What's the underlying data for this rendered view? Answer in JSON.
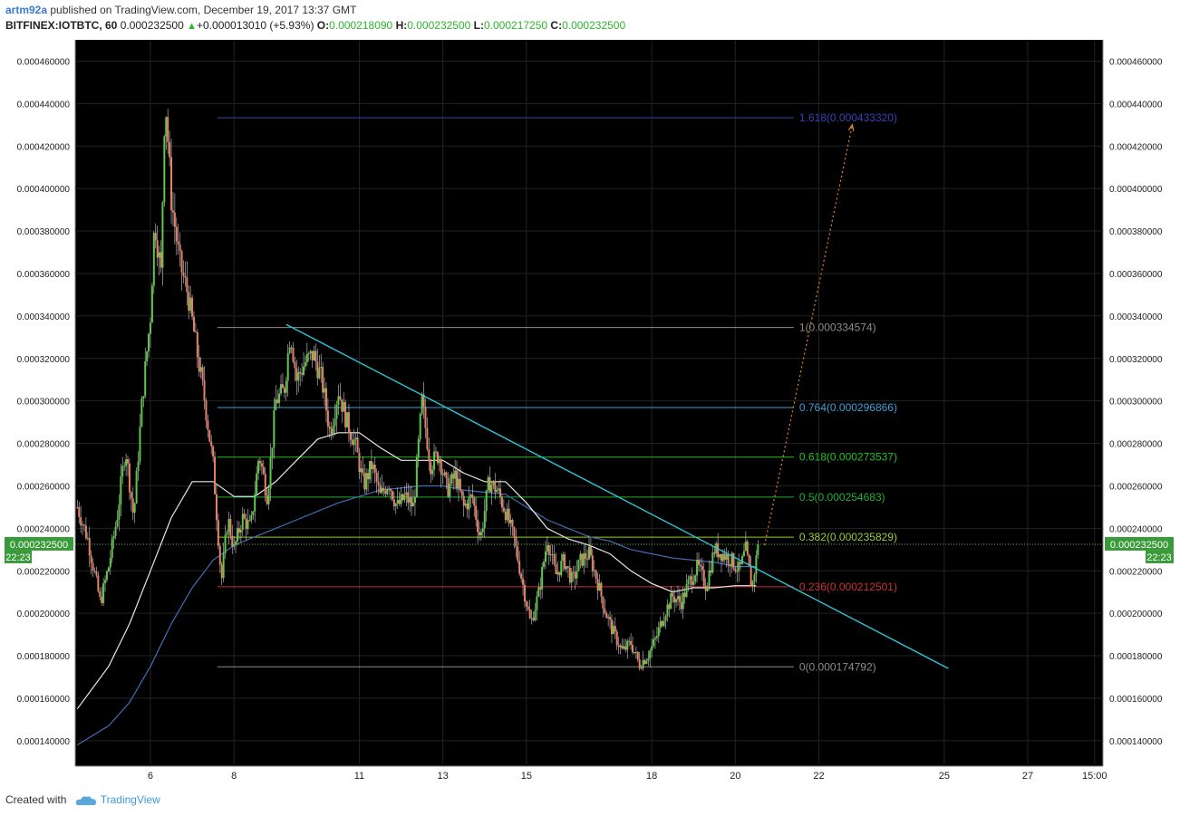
{
  "header": {
    "user": "artm92a",
    "published": "published on TradingView.com, December 19, 2017 13:37 GMT",
    "symbol": "BITFINEX:IOTBTC, 60",
    "price": "0.000232500",
    "change": "+0.000013010 (+5.93%)",
    "o_label": "O:",
    "o": "0.000218090",
    "h_label": "H:",
    "h": "0.000232500",
    "l_label": "L:",
    "l": "0.000217250",
    "c_label": "C:",
    "c": "0.000232500"
  },
  "footer": {
    "created": "Created with",
    "brand": "TradingView"
  },
  "chart_data": {
    "type": "candlestick",
    "title": "",
    "ylim": [
      0.000128,
      0.00047
    ],
    "y_ticks": [
      "0.000140000",
      "0.000160000",
      "0.000180000",
      "0.000200000",
      "0.000220000",
      "0.000240000",
      "0.000260000",
      "0.000280000",
      "0.000300000",
      "0.000320000",
      "0.000340000",
      "0.000360000",
      "0.000380000",
      "0.000400000",
      "0.000420000",
      "0.000440000",
      "0.000460000"
    ],
    "x_ticks": [
      {
        "label": "6",
        "day": 6
      },
      {
        "label": "8",
        "day": 8
      },
      {
        "label": "11",
        "day": 11
      },
      {
        "label": "13",
        "day": 13
      },
      {
        "label": "15",
        "day": 15
      },
      {
        "label": "18",
        "day": 18
      },
      {
        "label": "20",
        "day": 20
      },
      {
        "label": "22",
        "day": 22
      },
      {
        "label": "25",
        "day": 25
      },
      {
        "label": "27",
        "day": 27
      },
      {
        "label": "15:00",
        "day": 28.6
      }
    ],
    "xlim_day": [
      4.2,
      28.8
    ],
    "current_price": {
      "value": 0.0002325,
      "label": "0.000232500",
      "countdown": "22:23"
    },
    "path": [
      {
        "d": 4.25,
        "v": 0.00025
      },
      {
        "d": 4.5,
        "v": 0.000235
      },
      {
        "d": 4.8,
        "v": 0.000205
      },
      {
        "d": 5.0,
        "v": 0.000222
      },
      {
        "d": 5.2,
        "v": 0.000245
      },
      {
        "d": 5.4,
        "v": 0.000278
      },
      {
        "d": 5.6,
        "v": 0.000245
      },
      {
        "d": 5.8,
        "v": 0.0003
      },
      {
        "d": 6.0,
        "v": 0.00034
      },
      {
        "d": 6.1,
        "v": 0.000385
      },
      {
        "d": 6.25,
        "v": 0.00036
      },
      {
        "d": 6.35,
        "v": 0.000445
      },
      {
        "d": 6.5,
        "v": 0.000395
      },
      {
        "d": 6.7,
        "v": 0.000365
      },
      {
        "d": 6.9,
        "v": 0.00035
      },
      {
        "d": 7.1,
        "v": 0.000325
      },
      {
        "d": 7.3,
        "v": 0.0003
      },
      {
        "d": 7.5,
        "v": 0.00027
      },
      {
        "d": 7.7,
        "v": 0.000215
      },
      {
        "d": 7.85,
        "v": 0.000245
      },
      {
        "d": 8.0,
        "v": 0.00023
      },
      {
        "d": 8.2,
        "v": 0.000245
      },
      {
        "d": 8.4,
        "v": 0.00024
      },
      {
        "d": 8.6,
        "v": 0.000275
      },
      {
        "d": 8.8,
        "v": 0.000255
      },
      {
        "d": 9.0,
        "v": 0.0003
      },
      {
        "d": 9.2,
        "v": 0.000305
      },
      {
        "d": 9.35,
        "v": 0.000333
      },
      {
        "d": 9.5,
        "v": 0.00031
      },
      {
        "d": 9.7,
        "v": 0.000318
      },
      {
        "d": 9.9,
        "v": 0.000322
      },
      {
        "d": 10.1,
        "v": 0.00031
      },
      {
        "d": 10.3,
        "v": 0.000285
      },
      {
        "d": 10.5,
        "v": 0.000305
      },
      {
        "d": 10.7,
        "v": 0.00029
      },
      {
        "d": 10.9,
        "v": 0.00028
      },
      {
        "d": 11.1,
        "v": 0.00026
      },
      {
        "d": 11.3,
        "v": 0.00027
      },
      {
        "d": 11.5,
        "v": 0.000255
      },
      {
        "d": 11.7,
        "v": 0.000262
      },
      {
        "d": 11.9,
        "v": 0.00025
      },
      {
        "d": 12.1,
        "v": 0.000255
      },
      {
        "d": 12.3,
        "v": 0.00025
      },
      {
        "d": 12.5,
        "v": 0.0003
      },
      {
        "d": 12.7,
        "v": 0.00027
      },
      {
        "d": 12.9,
        "v": 0.000275
      },
      {
        "d": 13.1,
        "v": 0.000258
      },
      {
        "d": 13.3,
        "v": 0.000265
      },
      {
        "d": 13.5,
        "v": 0.00025
      },
      {
        "d": 13.7,
        "v": 0.000255
      },
      {
        "d": 13.9,
        "v": 0.000235
      },
      {
        "d": 14.1,
        "v": 0.000262
      },
      {
        "d": 14.3,
        "v": 0.000258
      },
      {
        "d": 14.5,
        "v": 0.000248
      },
      {
        "d": 14.7,
        "v": 0.000235
      },
      {
        "d": 14.9,
        "v": 0.000215
      },
      {
        "d": 15.1,
        "v": 0.000195
      },
      {
        "d": 15.3,
        "v": 0.00021
      },
      {
        "d": 15.5,
        "v": 0.000235
      },
      {
        "d": 15.7,
        "v": 0.000218
      },
      {
        "d": 15.9,
        "v": 0.000225
      },
      {
        "d": 16.1,
        "v": 0.000215
      },
      {
        "d": 16.3,
        "v": 0.000225
      },
      {
        "d": 16.5,
        "v": 0.000228
      },
      {
        "d": 16.7,
        "v": 0.000215
      },
      {
        "d": 16.9,
        "v": 0.0002
      },
      {
        "d": 17.1,
        "v": 0.00019
      },
      {
        "d": 17.3,
        "v": 0.000182
      },
      {
        "d": 17.5,
        "v": 0.000186
      },
      {
        "d": 17.7,
        "v": 0.000176
      },
      {
        "d": 17.9,
        "v": 0.00018
      },
      {
        "d": 18.1,
        "v": 0.000188
      },
      {
        "d": 18.3,
        "v": 0.0002
      },
      {
        "d": 18.5,
        "v": 0.000208
      },
      {
        "d": 18.7,
        "v": 0.000205
      },
      {
        "d": 18.9,
        "v": 0.000215
      },
      {
        "d": 19.1,
        "v": 0.000222
      },
      {
        "d": 19.3,
        "v": 0.000213
      },
      {
        "d": 19.5,
        "v": 0.00023
      },
      {
        "d": 19.7,
        "v": 0.000228
      },
      {
        "d": 19.9,
        "v": 0.000225
      },
      {
        "d": 20.1,
        "v": 0.00022
      },
      {
        "d": 20.25,
        "v": 0.00023
      },
      {
        "d": 20.4,
        "v": 0.000212
      },
      {
        "d": 20.55,
        "v": 0.0002325
      }
    ],
    "ma_fast": [
      [
        4.25,
        0.000155
      ],
      [
        5.0,
        0.000175
      ],
      [
        5.5,
        0.000195
      ],
      [
        6.0,
        0.00022
      ],
      [
        6.5,
        0.000245
      ],
      [
        7.0,
        0.000262
      ],
      [
        7.5,
        0.000262
      ],
      [
        8.0,
        0.000255
      ],
      [
        8.5,
        0.000255
      ],
      [
        9.0,
        0.000262
      ],
      [
        9.5,
        0.000272
      ],
      [
        10.0,
        0.000282
      ],
      [
        10.5,
        0.000285
      ],
      [
        11.0,
        0.000285
      ],
      [
        11.5,
        0.000278
      ],
      [
        12.0,
        0.000272
      ],
      [
        12.5,
        0.000272
      ],
      [
        13.0,
        0.000272
      ],
      [
        13.5,
        0.000266
      ],
      [
        14.0,
        0.000262
      ],
      [
        14.5,
        0.000262
      ],
      [
        15.0,
        0.000252
      ],
      [
        15.5,
        0.00024
      ],
      [
        16.0,
        0.000235
      ],
      [
        16.5,
        0.000232
      ],
      [
        17.0,
        0.000228
      ],
      [
        17.5,
        0.00022
      ],
      [
        18.0,
        0.000214
      ],
      [
        18.5,
        0.00021
      ],
      [
        19.0,
        0.000212
      ],
      [
        19.5,
        0.000212
      ],
      [
        20.0,
        0.000213
      ],
      [
        20.5,
        0.000213
      ]
    ],
    "ma_slow": [
      [
        4.25,
        0.000138
      ],
      [
        5.0,
        0.000147
      ],
      [
        5.5,
        0.000158
      ],
      [
        6.0,
        0.000175
      ],
      [
        6.5,
        0.000195
      ],
      [
        7.0,
        0.000212
      ],
      [
        7.5,
        0.000225
      ],
      [
        8.0,
        0.000232
      ],
      [
        8.5,
        0.000236
      ],
      [
        9.0,
        0.00024
      ],
      [
        9.5,
        0.000244
      ],
      [
        10.0,
        0.000248
      ],
      [
        10.5,
        0.000252
      ],
      [
        11.0,
        0.000255
      ],
      [
        11.5,
        0.000258
      ],
      [
        12.0,
        0.000259
      ],
      [
        12.5,
        0.00026
      ],
      [
        13.0,
        0.00026
      ],
      [
        13.5,
        0.000258
      ],
      [
        14.0,
        0.000257
      ],
      [
        14.5,
        0.000256
      ],
      [
        15.0,
        0.00025
      ],
      [
        15.5,
        0.000244
      ],
      [
        16.0,
        0.00024
      ],
      [
        16.5,
        0.000236
      ],
      [
        17.0,
        0.000234
      ],
      [
        17.5,
        0.00023
      ],
      [
        18.0,
        0.000228
      ],
      [
        18.5,
        0.000226
      ],
      [
        19.0,
        0.000225
      ],
      [
        19.5,
        0.000224
      ],
      [
        20.0,
        0.000222
      ],
      [
        20.5,
        0.000222
      ]
    ],
    "fib": {
      "day_start": 7.6,
      "day_end": 21.4,
      "levels": [
        {
          "label": "1.618(0.000433320)",
          "value": 0.00043332,
          "color": "#3c3fb8"
        },
        {
          "label": "1(0.000334574)",
          "value": 0.000334574,
          "color": "#8c8c8c"
        },
        {
          "label": "0.764(0.000296866)",
          "value": 0.000296866,
          "color": "#3aa0d8"
        },
        {
          "label": "0.618(0.000273537)",
          "value": 0.000273537,
          "color": "#20c020"
        },
        {
          "label": "0.5(0.000254683)",
          "value": 0.000254683,
          "color": "#20b030"
        },
        {
          "label": "0.382(0.000235829)",
          "value": 0.000235829,
          "color": "#9acd32"
        },
        {
          "label": "0.236(0.000212501)",
          "value": 0.000212501,
          "color": "#c83232"
        },
        {
          "label": "0(0.000174792)",
          "value": 0.000174792,
          "color": "#8c8c8c"
        }
      ]
    },
    "trendline": {
      "color": "#2ec4d6",
      "from": [
        9.25,
        0.000336
      ],
      "to": [
        25.1,
        0.000174
      ]
    },
    "projection": {
      "color": "#e08a28",
      "from": [
        20.7,
        0.000232
      ],
      "to": [
        22.8,
        0.00043
      ]
    }
  }
}
